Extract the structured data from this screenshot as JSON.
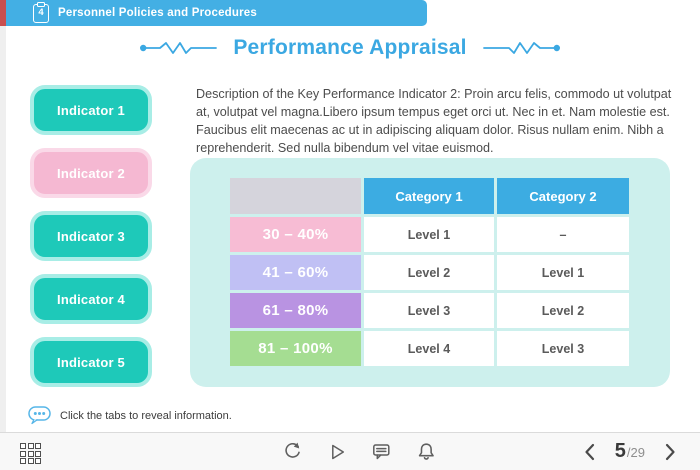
{
  "colors": {
    "accent_blue": "#43AFE4",
    "title_blue": "#3BA8E2",
    "tab_teal": "#1EC9B9",
    "tab_teal_glow": "#A8EDE6",
    "tab_pink": "#F5B8D2",
    "tab_pink_glow": "#FAD9E8",
    "panel_mint": "#CDF0ED",
    "table_header_blue": "#3CACE2",
    "table_corner_gray": "#D5D4DC",
    "text_dark": "#4C4C4C",
    "red_edge": "#C94F4F"
  },
  "header": {
    "chapter_number": "4",
    "title": "Personnel Policies and Procedures"
  },
  "slide": {
    "title": "Performance Appraisal",
    "description": "Description of the Key Performance Indicator 2: Proin arcu felis, commodo ut volutpat at, volutpat vel magna.Libero ipsum tempus eget orci ut. Nec in et. Nam molestie est. Faucibus elit maecenas ac ut in adipiscing aliquam dolor. Risus nullam enim. Nibh a reprehenderit. Sed nulla bibendum vel vitae euismod.",
    "tabs": [
      {
        "label": "Indicator 1",
        "active": false
      },
      {
        "label": "Indicator 2",
        "active": true
      },
      {
        "label": "Indicator 3",
        "active": false
      },
      {
        "label": "Indicator 4",
        "active": false
      },
      {
        "label": "Indicator 5",
        "active": false
      }
    ],
    "hint": "Click the tabs to reveal information."
  },
  "table": {
    "columns": [
      "",
      "Category 1",
      "Category 2"
    ],
    "rows": [
      {
        "range": "30 – 40%",
        "color": "#F7BCD4",
        "category1": "Level 1",
        "category2": "–"
      },
      {
        "range": "41 – 60%",
        "color": "#C0C0F4",
        "category1": "Level 2",
        "category2": "Level 1"
      },
      {
        "range": "61 – 80%",
        "color": "#B993E2",
        "category1": "Level 3",
        "category2": "Level 2"
      },
      {
        "range": "81 – 100%",
        "color": "#A5DD92",
        "category1": "Level 4",
        "category2": "Level 3"
      }
    ]
  },
  "footer": {
    "page_current": "5",
    "page_total": "/29",
    "icons": [
      "menu-grid",
      "refresh",
      "play",
      "comment",
      "bell",
      "chevron-left",
      "chevron-right"
    ]
  }
}
